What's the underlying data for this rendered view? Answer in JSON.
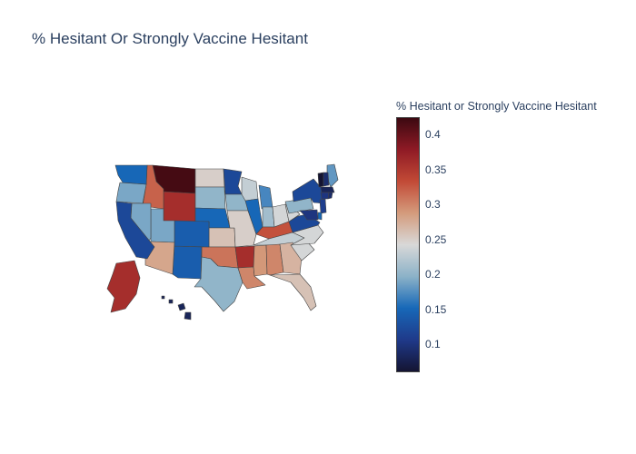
{
  "title": "% Hesitant Or Strongly Vaccine Hesitant",
  "colorbar": {
    "title": "% Hesitant or Strongly Vaccine Hesitant",
    "range": [
      0.06,
      0.425
    ],
    "ticks": [
      "0.1",
      "0.15",
      "0.2",
      "0.25",
      "0.3",
      "0.35",
      "0.4"
    ],
    "colors": [
      "#141432",
      "#1f3a8a",
      "#1768b8",
      "#8cb2c8",
      "#d8d8d8",
      "#d49b7c",
      "#c24a36",
      "#8f1a25",
      "#3c0911"
    ]
  },
  "chart_data": {
    "type": "choropleth",
    "locationmode": "USA-states",
    "scope": "usa",
    "colorbar_title": "% Hesitant or Strongly Vaccine Hesitant",
    "locations": [
      "MT",
      "WY",
      "ID",
      "ND",
      "SD",
      "NE",
      "KS",
      "OK",
      "TX",
      "NM",
      "CO",
      "UT",
      "AZ",
      "NV",
      "CA",
      "OR",
      "WA",
      "MN",
      "IA",
      "MO",
      "AR",
      "LA",
      "WI",
      "IL",
      "MI",
      "IN",
      "OH",
      "KY",
      "TN",
      "MS",
      "AL",
      "GA",
      "FL",
      "SC",
      "NC",
      "VA",
      "WV",
      "PA",
      "NY",
      "ME",
      "VT",
      "NH",
      "MA",
      "CT",
      "RI",
      "NJ",
      "DE",
      "MD",
      "AK",
      "HI"
    ],
    "values": [
      0.42,
      0.36,
      0.32,
      0.25,
      0.2,
      0.15,
      0.26,
      0.31,
      0.2,
      0.14,
      0.14,
      0.19,
      0.28,
      0.19,
      0.12,
      0.19,
      0.15,
      0.12,
      0.2,
      0.25,
      0.36,
      0.3,
      0.23,
      0.15,
      0.17,
      0.21,
      0.24,
      0.33,
      0.23,
      0.29,
      0.3,
      0.27,
      0.26,
      0.24,
      0.24,
      0.12,
      0.24,
      0.2,
      0.12,
      0.18,
      0.06,
      0.09,
      0.08,
      0.1,
      0.09,
      0.11,
      0.15,
      0.1,
      0.36,
      0.08
    ]
  }
}
